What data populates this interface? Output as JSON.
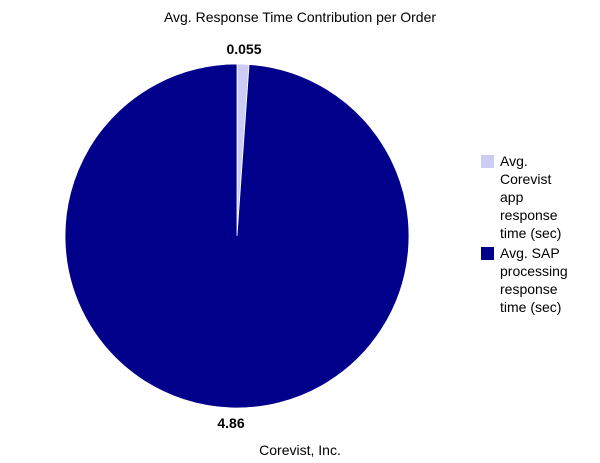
{
  "chart_data": {
    "type": "pie",
    "title": "Avg. Response Time Contribution per Order",
    "footer": "Corevist, Inc.",
    "slices": [
      {
        "name": "Avg. Corevist app response time (sec)",
        "legend_lines": [
          "Avg.",
          "Corevist",
          "app",
          "response",
          "time (sec)"
        ],
        "value": 0.055,
        "label": "0.055",
        "color": "#ccccf5"
      },
      {
        "name": "Avg. SAP processing response time (sec)",
        "legend_lines": [
          "Avg. SAP",
          "processing",
          "response",
          "time (sec)"
        ],
        "value": 4.86,
        "label": "4.86",
        "color": "#00008b"
      }
    ],
    "legend_position": "right",
    "start_angle_deg": 0,
    "direction": "clockwise"
  }
}
